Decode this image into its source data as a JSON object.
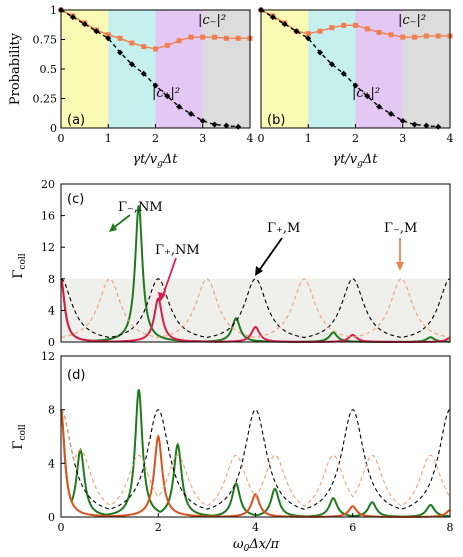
{
  "chart_data": [
    {
      "panel": "(a)",
      "type": "line",
      "ylabel": "Probability",
      "xlabel": "γt/v_gΔt",
      "xlim": [
        0,
        4
      ],
      "ylim": [
        0,
        1
      ],
      "xticks": [
        "0",
        "1",
        "2",
        "3",
        "4"
      ],
      "yticks": [
        "0",
        "0.25",
        "0.5",
        "0.75",
        "1"
      ],
      "regions": [
        {
          "from": 0,
          "to": 1,
          "color": "#fafab4"
        },
        {
          "from": 1,
          "to": 2,
          "color": "#c6f0ee"
        },
        {
          "from": 2,
          "to": 3,
          "color": "#e4c8f4"
        },
        {
          "from": 3,
          "to": 4,
          "color": "#dcdcdc"
        }
      ],
      "series": [
        {
          "name": "|c₋|²",
          "color": "#f07f50",
          "x": [
            0,
            0.25,
            0.5,
            0.75,
            1,
            1.25,
            1.5,
            1.75,
            2,
            2.25,
            2.5,
            2.75,
            3,
            3.25,
            3.5,
            3.75,
            4
          ],
          "y": [
            1.0,
            0.95,
            0.89,
            0.83,
            0.79,
            0.76,
            0.72,
            0.69,
            0.67,
            0.7,
            0.74,
            0.77,
            0.77,
            0.77,
            0.76,
            0.76,
            0.76
          ]
        },
        {
          "name": "|c₊|²",
          "color": "#000000",
          "x": [
            0,
            0.25,
            0.5,
            0.75,
            1,
            1.25,
            1.5,
            1.75,
            2,
            2.25,
            2.5,
            2.75,
            3,
            3.25,
            3.5,
            3.75
          ],
          "y": [
            1.0,
            0.94,
            0.88,
            0.82,
            0.76,
            0.64,
            0.54,
            0.46,
            0.36,
            0.27,
            0.18,
            0.12,
            0.06,
            0.03,
            0.02,
            0.01
          ]
        }
      ],
      "labels": {
        "cm": "|c₋|²",
        "cp": "|c₊|²"
      }
    },
    {
      "panel": "(b)",
      "type": "line",
      "xlabel": "γt/v_gΔt",
      "xlim": [
        0,
        4
      ],
      "ylim": [
        0,
        1
      ],
      "xticks": [
        "0",
        "1",
        "2",
        "3",
        "4"
      ],
      "series": [
        {
          "name": "|c₋|²",
          "color": "#f07f50",
          "x": [
            0,
            0.25,
            0.5,
            0.75,
            1,
            1.25,
            1.5,
            1.75,
            2,
            2.25,
            2.5,
            2.75,
            3,
            3.25,
            3.5,
            3.75,
            4
          ],
          "y": [
            1.0,
            0.95,
            0.89,
            0.82,
            0.8,
            0.82,
            0.85,
            0.87,
            0.87,
            0.84,
            0.81,
            0.79,
            0.77,
            0.77,
            0.78,
            0.78,
            0.78
          ]
        },
        {
          "name": "|c₊|²",
          "color": "#000000",
          "x": [
            0,
            0.25,
            0.5,
            0.75,
            1,
            1.25,
            1.5,
            1.75,
            2,
            2.25,
            2.5,
            2.75,
            3,
            3.25,
            3.5,
            3.75
          ],
          "y": [
            1.0,
            0.94,
            0.88,
            0.82,
            0.76,
            0.64,
            0.54,
            0.46,
            0.36,
            0.27,
            0.18,
            0.12,
            0.06,
            0.03,
            0.02,
            0.01
          ]
        }
      ],
      "labels": {
        "cm": "|c₋|²",
        "cp": "|c₊|²"
      }
    },
    {
      "panel": "(c)",
      "type": "line",
      "ylabel": "Γcoll",
      "xlim": [
        0,
        8
      ],
      "ylim": [
        0,
        20
      ],
      "yticks": [
        "0",
        "4",
        "8",
        "12",
        "16",
        "20"
      ],
      "band": {
        "from": 0,
        "to": 8,
        "color": "#efefec"
      },
      "series": [
        {
          "name": "Γ₋,NM",
          "color": "#1f7a1f",
          "style": "solid",
          "peaks": [
            {
              "x": 0,
              "y": 8
            },
            {
              "x": 1.6,
              "y": 17.3
            },
            {
              "x": 3.6,
              "y": 3.0
            },
            {
              "x": 5.6,
              "y": 1.2
            },
            {
              "x": 7.6,
              "y": 0.6
            }
          ]
        },
        {
          "name": "Γ₊,NM",
          "color": "#d81f4a",
          "style": "solid",
          "peaks": [
            {
              "x": 0,
              "y": 8
            },
            {
              "x": 2.0,
              "y": 5.5
            },
            {
              "x": 4.0,
              "y": 1.9
            },
            {
              "x": 6.0,
              "y": 0.9
            },
            {
              "x": 8.0,
              "y": 0.5
            }
          ]
        },
        {
          "name": "Γ₊,M",
          "color": "#000000",
          "style": "dashed",
          "peaks": [
            {
              "x": 0,
              "y": 8
            },
            {
              "x": 2.0,
              "y": 8
            },
            {
              "x": 4.0,
              "y": 8
            },
            {
              "x": 6.0,
              "y": 8
            },
            {
              "x": 8.0,
              "y": 8
            }
          ]
        },
        {
          "name": "Γ₋,M",
          "color": "#f4a070",
          "style": "dashed",
          "peaks": [
            {
              "x": 1.0,
              "y": 8
            },
            {
              "x": 3.0,
              "y": 8
            },
            {
              "x": 5.0,
              "y": 8
            },
            {
              "x": 7.0,
              "y": 8
            }
          ]
        }
      ],
      "annotations": [
        {
          "text": "Γ₋,NM",
          "color": "#1f7a1f"
        },
        {
          "text": "Γ₊,NM",
          "color": "#d81f4a"
        },
        {
          "text": "Γ₊,M",
          "color": "#000000"
        },
        {
          "text": "Γ₋,M",
          "color": "#f07f50"
        }
      ]
    },
    {
      "panel": "(d)",
      "type": "line",
      "ylabel": "Γcoll",
      "xlabel": "ω₀Δx/π",
      "xlim": [
        0,
        8
      ],
      "ylim": [
        0,
        12
      ],
      "xticks": [
        "0",
        "2",
        "4",
        "6",
        "8"
      ],
      "yticks": [
        "0",
        "4",
        "8",
        "12"
      ],
      "series": [
        {
          "name": "green",
          "color": "#1f7a1f",
          "style": "solid",
          "peaks": [
            {
              "x": 0,
              "y": 8
            },
            {
              "x": 0.4,
              "y": 5.0
            },
            {
              "x": 1.6,
              "y": 9.5
            },
            {
              "x": 2.4,
              "y": 5.4
            },
            {
              "x": 3.6,
              "y": 2.5
            },
            {
              "x": 4.4,
              "y": 2.1
            },
            {
              "x": 5.6,
              "y": 1.4
            },
            {
              "x": 6.4,
              "y": 1.1
            },
            {
              "x": 7.6,
              "y": 0.9
            }
          ]
        },
        {
          "name": "orange-red",
          "color": "#d9531e",
          "style": "solid",
          "peaks": [
            {
              "x": 0,
              "y": 8
            },
            {
              "x": 2.0,
              "y": 6.0
            },
            {
              "x": 4.0,
              "y": 1.7
            },
            {
              "x": 6.0,
              "y": 0.8
            },
            {
              "x": 8.0,
              "y": 0.5
            }
          ]
        },
        {
          "name": "black-dashed",
          "color": "#000000",
          "style": "dashed",
          "peaks": [
            {
              "x": 0,
              "y": 8
            },
            {
              "x": 2.0,
              "y": 8
            },
            {
              "x": 4.0,
              "y": 8
            },
            {
              "x": 6.0,
              "y": 8
            },
            {
              "x": 8.0,
              "y": 8
            }
          ]
        },
        {
          "name": "orange-dashed",
          "color": "#f4a070",
          "style": "dashed",
          "peaks": [
            {
              "x": 0,
              "y": 8
            },
            {
              "x": 0.4,
              "y": 5
            },
            {
              "x": 1.6,
              "y": 4.6
            },
            {
              "x": 2.4,
              "y": 4.6
            },
            {
              "x": 3.6,
              "y": 4.6
            },
            {
              "x": 4.4,
              "y": 4.6
            },
            {
              "x": 5.6,
              "y": 4.6
            },
            {
              "x": 6.4,
              "y": 4.6
            },
            {
              "x": 7.6,
              "y": 4.6
            }
          ]
        }
      ]
    }
  ]
}
